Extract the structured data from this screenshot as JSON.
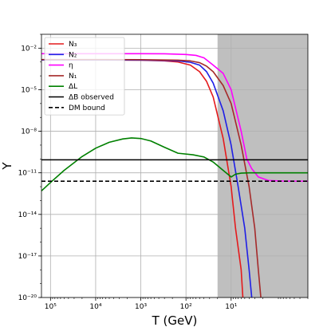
{
  "chart_data": {
    "type": "line",
    "xlabel": "T (GeV)",
    "ylabel": "Y",
    "x_scale": "log",
    "y_scale": "log",
    "x_reversed": true,
    "xlim": [
      158489,
      0.2
    ],
    "ylim": [
      1e-20,
      0.1
    ],
    "grid": true,
    "legend_position": "top-left",
    "shaded_region": {
      "x_from": 20,
      "x_to": 0.2,
      "color": "#bfbfbf"
    },
    "x_ticks": [
      {
        "value": 100000,
        "label": "10⁵"
      },
      {
        "value": 10000,
        "label": "10⁴"
      },
      {
        "value": 1000,
        "label": "10³"
      },
      {
        "value": 100,
        "label": "10²"
      },
      {
        "value": 10,
        "label": "10¹"
      }
    ],
    "y_ticks": [
      {
        "value": 1e-20,
        "label": "10⁻²⁰"
      },
      {
        "value": 1e-17,
        "label": "10⁻¹⁷"
      },
      {
        "value": 1e-14,
        "label": "10⁻¹⁴"
      },
      {
        "value": 1e-11,
        "label": "10⁻¹¹"
      },
      {
        "value": 1e-08,
        "label": "10⁻⁸"
      },
      {
        "value": 1e-05,
        "label": "10⁻⁵"
      },
      {
        "value": 0.01,
        "label": "10⁻²"
      }
    ],
    "series": [
      {
        "name": "N₃",
        "color": "#e41a1c",
        "style": "solid",
        "points": [
          [
            158489,
            0.0014
          ],
          [
            10000,
            0.0014
          ],
          [
            1000,
            0.00135
          ],
          [
            300,
            0.0012
          ],
          [
            150,
            0.001
          ],
          [
            80,
            0.0006
          ],
          [
            50,
            0.0002
          ],
          [
            35,
            4e-05
          ],
          [
            25,
            3e-06
          ],
          [
            15,
            3e-09
          ],
          [
            10,
            1e-12
          ],
          [
            8,
            1e-15
          ],
          [
            6,
            1e-18
          ],
          [
            5.5,
            1e-20
          ]
        ]
      },
      {
        "name": "N₂",
        "color": "#1f1fe6",
        "style": "solid",
        "points": [
          [
            158489,
            0.0014
          ],
          [
            10000,
            0.0014
          ],
          [
            1000,
            0.00137
          ],
          [
            300,
            0.0013
          ],
          [
            150,
            0.0012
          ],
          [
            80,
            0.00095
          ],
          [
            50,
            0.0006
          ],
          [
            35,
            0.0002
          ],
          [
            25,
            3e-05
          ],
          [
            15,
            3e-07
          ],
          [
            10,
            1e-09
          ],
          [
            7,
            1e-12
          ],
          [
            5,
            1e-15
          ],
          [
            4,
            1e-18
          ],
          [
            3.5,
            1e-20
          ]
        ]
      },
      {
        "name": "η",
        "color": "#ff00ff",
        "style": "solid",
        "points": [
          [
            158489,
            0.004
          ],
          [
            10000,
            0.004
          ],
          [
            1000,
            0.004
          ],
          [
            300,
            0.0039
          ],
          [
            100,
            0.0035
          ],
          [
            60,
            0.003
          ],
          [
            40,
            0.002
          ],
          [
            25,
            0.0006
          ],
          [
            15,
            0.00015
          ],
          [
            10,
            1e-05
          ],
          [
            6,
            1e-08
          ],
          [
            4.5,
            1e-10
          ],
          [
            3.5,
            2e-11
          ],
          [
            2.5,
            5e-12
          ],
          [
            1.5,
            2.8e-12
          ],
          [
            0.7,
            2.55e-12
          ],
          [
            0.2,
            2.5e-12
          ]
        ]
      },
      {
        "name": "N₁",
        "color": "#a52a2a",
        "style": "solid",
        "points": [
          [
            158489,
            0.0015
          ],
          [
            10000,
            0.0015
          ],
          [
            1000,
            0.00148
          ],
          [
            300,
            0.0014
          ],
          [
            150,
            0.00135
          ],
          [
            80,
            0.0012
          ],
          [
            50,
            0.0009
          ],
          [
            35,
            0.0005
          ],
          [
            25,
            0.0002
          ],
          [
            15,
            2e-05
          ],
          [
            10,
            1e-06
          ],
          [
            6,
            1e-09
          ],
          [
            4,
            1e-12
          ],
          [
            3,
            1e-15
          ],
          [
            2.5,
            1e-18
          ],
          [
            2.2,
            1e-20
          ]
        ]
      },
      {
        "name": "ΔL",
        "color": "#008000",
        "style": "solid",
        "points": [
          [
            158489,
            5e-13
          ],
          [
            100000,
            2e-12
          ],
          [
            50000,
            1.5e-11
          ],
          [
            20000,
            1.5e-10
          ],
          [
            10000,
            6e-10
          ],
          [
            5000,
            1.6e-09
          ],
          [
            2500,
            2.8e-09
          ],
          [
            1600,
            3.3e-09
          ],
          [
            1000,
            3e-09
          ],
          [
            600,
            2e-09
          ],
          [
            300,
            7e-10
          ],
          [
            150,
            2.6e-10
          ],
          [
            70,
            2e-10
          ],
          [
            40,
            1.4e-10
          ],
          [
            25,
            6e-11
          ],
          [
            15,
            1.5e-11
          ],
          [
            10,
            5e-12
          ],
          [
            8,
            8e-12
          ],
          [
            6,
            9.5e-12
          ],
          [
            4,
            1e-11
          ],
          [
            1,
            1e-11
          ],
          [
            0.2,
            1e-11
          ]
        ]
      },
      {
        "name": "ΔB observed",
        "color": "#000000",
        "style": "solid",
        "points": [
          [
            158489,
            8.7e-11
          ],
          [
            0.2,
            8.7e-11
          ]
        ]
      },
      {
        "name": "DM bound",
        "color": "#000000",
        "style": "dashed",
        "points": [
          [
            158489,
            2.5e-12
          ],
          [
            0.2,
            2.5e-12
          ]
        ]
      }
    ]
  }
}
